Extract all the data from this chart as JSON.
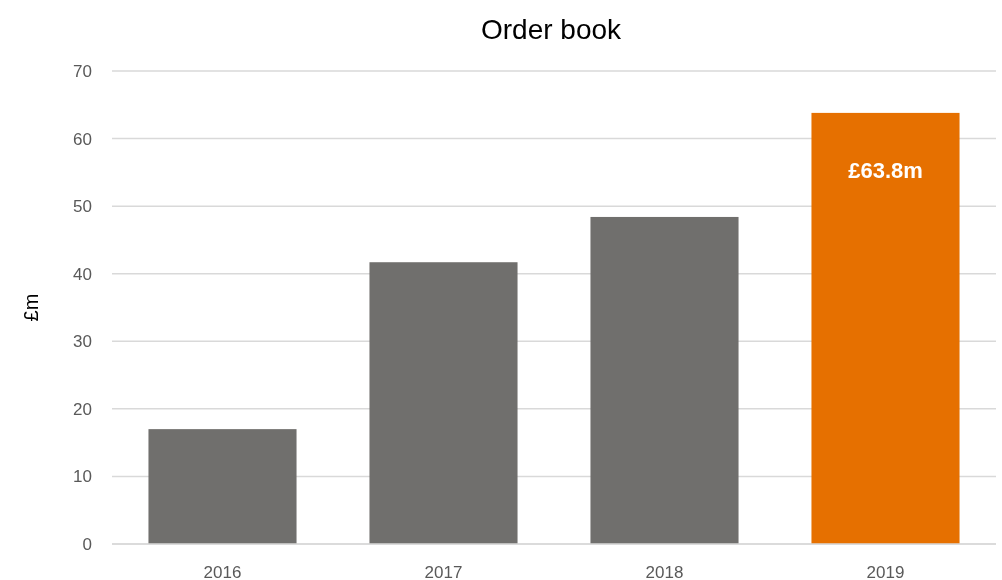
{
  "chart_data": {
    "type": "bar",
    "title": "Order book",
    "ylabel": "£m",
    "categories": [
      "2016",
      "2017",
      "2018",
      "2019"
    ],
    "values": [
      17.0,
      41.7,
      48.4,
      63.8
    ],
    "colors": [
      "#706f6d",
      "#706f6d",
      "#706f6d",
      "#e67000"
    ],
    "value_labels": [
      null,
      null,
      null,
      "£63.8m"
    ],
    "ylim": [
      0,
      70
    ],
    "yticks": [
      0,
      10,
      20,
      30,
      40,
      50,
      60,
      70
    ],
    "grid": "y"
  }
}
